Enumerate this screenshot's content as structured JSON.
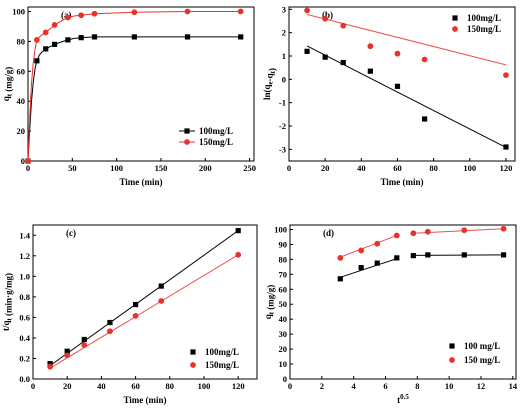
{
  "colors": {
    "series1": "#000000",
    "series2": "#e8332a",
    "fit1": "#000000",
    "fit2": "#f0504a"
  },
  "chart_data": [
    {
      "id": "a",
      "type": "line",
      "panel_label": "(a)",
      "xlabel": "Time (min)",
      "ylabel": "q_t (mg/g)",
      "xlim": [
        0,
        255
      ],
      "ylim": [
        0,
        103
      ],
      "xticks": [
        0,
        50,
        100,
        150,
        200,
        250
      ],
      "yticks": [
        0,
        20,
        40,
        60,
        80,
        100
      ],
      "legend_position": "bottom-right",
      "series": [
        {
          "name": "100mg/L",
          "marker": "square",
          "x": [
            0,
            10,
            20,
            30,
            45,
            60,
            75,
            120,
            180,
            240
          ],
          "y": [
            0,
            67,
            75,
            78,
            81,
            82.5,
            83,
            83,
            83,
            83
          ],
          "curve": [
            [
              0,
              0
            ],
            [
              2,
              22
            ],
            [
              4,
              40
            ],
            [
              6,
              53
            ],
            [
              8,
              62
            ],
            [
              10,
              67
            ],
            [
              13,
              71
            ],
            [
              16,
              73
            ],
            [
              20,
              75
            ],
            [
              25,
              76.5
            ],
            [
              30,
              78
            ],
            [
              37,
              79.5
            ],
            [
              45,
              81
            ],
            [
              52,
              82
            ],
            [
              60,
              82.5
            ],
            [
              68,
              82.8
            ],
            [
              75,
              83
            ],
            [
              120,
              83
            ],
            [
              180,
              83
            ],
            [
              240,
              83
            ]
          ]
        },
        {
          "name": "150mg/L",
          "marker": "circle",
          "x": [
            0,
            10,
            20,
            30,
            45,
            60,
            75,
            120,
            180,
            240
          ],
          "y": [
            0,
            81,
            86,
            91,
            96,
            97.5,
            98.5,
            99.5,
            100,
            100
          ],
          "curve": [
            [
              0,
              0
            ],
            [
              2,
              30
            ],
            [
              4,
              52
            ],
            [
              6,
              66
            ],
            [
              8,
              75
            ],
            [
              10,
              81
            ],
            [
              13,
              83
            ],
            [
              16,
              84.5
            ],
            [
              20,
              86
            ],
            [
              25,
              88.5
            ],
            [
              30,
              91
            ],
            [
              37,
              93.5
            ],
            [
              45,
              96
            ],
            [
              52,
              97
            ],
            [
              60,
              97.5
            ],
            [
              75,
              98.5
            ],
            [
              120,
              99.5
            ],
            [
              180,
              100
            ],
            [
              240,
              100
            ]
          ]
        }
      ]
    },
    {
      "id": "b",
      "type": "scatter",
      "panel_label": "(b)",
      "xlabel": "Time (min)",
      "ylabel": "ln(q_e-q_t)",
      "xlim": [
        0,
        125
      ],
      "ylim": [
        -3.5,
        3.1
      ],
      "xticks": [
        0,
        20,
        40,
        60,
        80,
        100,
        120
      ],
      "yticks": [
        -3,
        -2,
        -1,
        0,
        1,
        2,
        3
      ],
      "legend_position": "top-right",
      "series": [
        {
          "name": "100mg/L",
          "marker": "square",
          "x": [
            10,
            20,
            30,
            45,
            60,
            75,
            120
          ],
          "y": [
            1.2,
            0.95,
            0.72,
            0.35,
            -0.3,
            -1.7,
            -2.9
          ],
          "fit": [
            [
              10,
              1.43
            ],
            [
              120,
              -2.92
            ]
          ]
        },
        {
          "name": "150mg/L",
          "marker": "circle",
          "x": [
            10,
            20,
            30,
            45,
            60,
            75,
            120
          ],
          "y": [
            2.95,
            2.6,
            2.3,
            1.42,
            1.1,
            0.85,
            0.18
          ],
          "fit": [
            [
              10,
              2.78
            ],
            [
              120,
              0.62
            ]
          ]
        }
      ]
    },
    {
      "id": "c",
      "type": "scatter",
      "panel_label": "(c)",
      "xlabel": "Time (min)",
      "ylabel": "t/q_t (min·g/mg)",
      "xlim": [
        0,
        131
      ],
      "ylim": [
        0,
        1.5
      ],
      "xticks": [
        0,
        20,
        40,
        60,
        80,
        100,
        120
      ],
      "yticks": [
        0.0,
        0.2,
        0.4,
        0.6,
        0.8,
        1.0,
        1.2,
        1.4
      ],
      "ytick_labels": [
        "0.0",
        "0.2",
        "0.4",
        "0.6",
        "0.8",
        "1.0",
        "1.2",
        "1.4"
      ],
      "legend_position": "bottom-right",
      "series": [
        {
          "name": "100mg/L",
          "marker": "square",
          "x": [
            10,
            20,
            30,
            45,
            60,
            75,
            120
          ],
          "y": [
            0.15,
            0.27,
            0.385,
            0.55,
            0.725,
            0.905,
            1.445
          ],
          "fit": [
            [
              10,
              0.13
            ],
            [
              120,
              1.445
            ]
          ]
        },
        {
          "name": "150mg/L",
          "marker": "circle",
          "x": [
            10,
            20,
            30,
            45,
            60,
            75,
            120
          ],
          "y": [
            0.12,
            0.23,
            0.33,
            0.465,
            0.615,
            0.76,
            1.21
          ],
          "fit": [
            [
              10,
              0.105
            ],
            [
              120,
              1.21
            ]
          ]
        }
      ]
    },
    {
      "id": "d",
      "type": "scatter",
      "panel_label": "(d)",
      "xlabel": "t^0.5",
      "ylabel": "q_t (mg/g)",
      "xlim": [
        0,
        14.2
      ],
      "ylim": [
        0,
        103
      ],
      "xticks": [
        0,
        2,
        4,
        6,
        8,
        10,
        12,
        14
      ],
      "yticks": [
        0,
        10,
        20,
        30,
        40,
        50,
        60,
        70,
        80,
        90,
        100
      ],
      "legend_position": "bottom-right",
      "series": [
        {
          "name": "100 mg/L",
          "marker": "square",
          "x": [
            3.16,
            4.47,
            5.48,
            6.71,
            7.75,
            8.66,
            10.95,
            13.42
          ],
          "y": [
            67,
            74.5,
            77.5,
            81,
            82.5,
            83,
            83,
            83
          ],
          "fits": [
            [
              [
                3.16,
                68
              ],
              [
                6.71,
                80.5
              ]
            ],
            [
              [
                7.75,
                82.7
              ],
              [
                13.42,
                83
              ]
            ]
          ]
        },
        {
          "name": "150 mg/L",
          "marker": "circle",
          "x": [
            3.16,
            4.47,
            5.48,
            6.71,
            7.75,
            8.66,
            10.95,
            13.42
          ],
          "y": [
            81,
            86,
            90.5,
            96,
            97.5,
            98.5,
            99.5,
            100.5
          ],
          "fits": [
            [
              [
                3.16,
                81.5
              ],
              [
                6.71,
                96
              ]
            ],
            [
              [
                7.75,
                97.5
              ],
              [
                13.42,
                100.5
              ]
            ]
          ]
        }
      ]
    }
  ]
}
